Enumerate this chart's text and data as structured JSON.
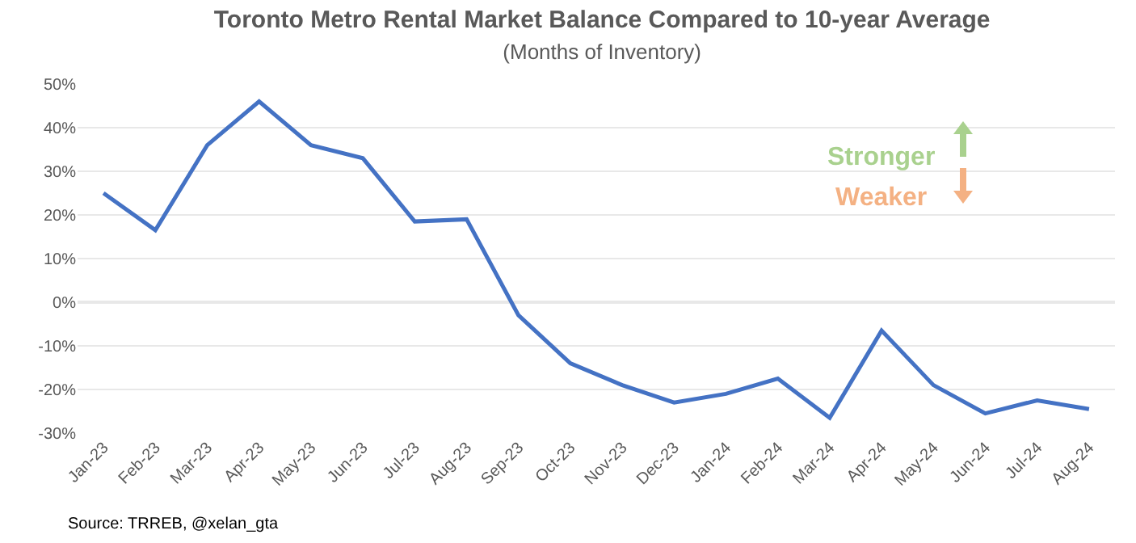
{
  "chart_data": {
    "type": "line",
    "title": "Toronto Metro Rental Market Balance Compared to 10-year Average",
    "subtitle": "(Months of Inventory)",
    "categories": [
      "Jan-23",
      "Feb-23",
      "Mar-23",
      "Apr-23",
      "May-23",
      "Jun-23",
      "Jul-23",
      "Aug-23",
      "Sep-23",
      "Oct-23",
      "Nov-23",
      "Dec-23",
      "Jan-24",
      "Feb-24",
      "Mar-24",
      "Apr-24",
      "May-24",
      "Jun-24",
      "Jul-24",
      "Aug-24"
    ],
    "series": [
      {
        "color": "#4472c4",
        "values": [
          25,
          16.5,
          36,
          46,
          36,
          33,
          18.5,
          19,
          -3,
          -14,
          -19,
          -23,
          -21,
          -17.5,
          -26.5,
          -6.5,
          -19,
          -25.5,
          -22.5,
          -24.5
        ]
      }
    ],
    "ylim": [
      -30,
      50
    ],
    "yticks": [
      {
        "value": -30,
        "label": "-30%"
      },
      {
        "value": -20,
        "label": "-20%"
      },
      {
        "value": -10,
        "label": "-10%"
      },
      {
        "value": 0,
        "label": "0%"
      },
      {
        "value": 10,
        "label": "10%"
      },
      {
        "value": 20,
        "label": "20%"
      },
      {
        "value": 30,
        "label": "30%"
      },
      {
        "value": 40,
        "label": "40%"
      },
      {
        "value": 50,
        "label": "50%"
      }
    ],
    "grid": "y",
    "legend": false,
    "marker": "none",
    "line_style": "solid",
    "ref_lines": [
      {
        "axis": "y",
        "value": 0,
        "color": "#a6a6a6"
      }
    ],
    "annotations": [
      "Stronger",
      "Weaker",
      "Source: TRREB, @xelan_gta"
    ]
  }
}
